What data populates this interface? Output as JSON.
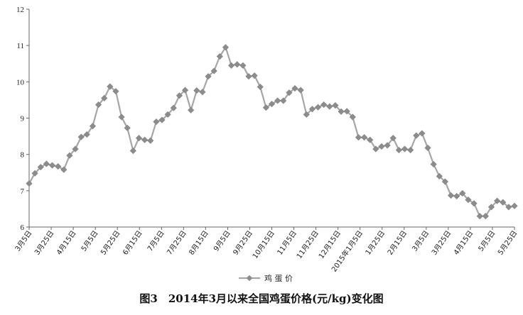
{
  "chart_data": {
    "type": "line",
    "title": "图3　2014年3月以来全国鸡蛋价格(元/kg)变化图",
    "xlabel": "",
    "ylabel": "",
    "ylim": [
      6,
      12
    ],
    "yticks": [
      "6",
      "7",
      "8",
      "9",
      "10",
      "11",
      "12"
    ],
    "grid": false,
    "legend": "bottom-center",
    "colors": {
      "line": "#a6a6a6",
      "marker": "#8c8c8c",
      "axis": "#666666"
    },
    "x_tick_labels": [
      "3月5日",
      "3月25日",
      "4月15日",
      "5月5日",
      "5月25日",
      "6月15日",
      "7月5日",
      "7月25日",
      "8月15日",
      "9月5日",
      "9月25日",
      "10月15日",
      "11月5日",
      "11月25日",
      "12月15日",
      "2015年1月5日",
      "1月25日",
      "2月15日",
      "3月5日",
      "3月25日",
      "4月15日",
      "5月5日",
      "5月25日"
    ],
    "series": [
      {
        "name": "鸡 蛋 价",
        "values": [
          7.2,
          7.48,
          7.65,
          7.74,
          7.7,
          7.67,
          7.58,
          7.97,
          8.15,
          8.48,
          8.55,
          8.78,
          9.37,
          9.55,
          9.87,
          9.74,
          9.03,
          8.73,
          8.1,
          8.45,
          8.4,
          8.38,
          8.9,
          8.95,
          9.1,
          9.28,
          9.62,
          9.77,
          9.22,
          9.76,
          9.72,
          10.15,
          10.3,
          10.7,
          10.95,
          10.45,
          10.48,
          10.45,
          10.15,
          10.17,
          9.86,
          9.29,
          9.39,
          9.48,
          9.48,
          9.7,
          9.82,
          9.77,
          9.1,
          9.25,
          9.3,
          9.37,
          9.32,
          9.35,
          9.18,
          9.19,
          9.03,
          8.47,
          8.47,
          8.4,
          8.15,
          8.22,
          8.25,
          8.45,
          8.12,
          8.15,
          8.12,
          8.52,
          8.58,
          8.18,
          7.73,
          7.4,
          7.25,
          6.87,
          6.85,
          6.93,
          6.75,
          6.65,
          6.3,
          6.3,
          6.55,
          6.72,
          6.68,
          6.55,
          6.58
        ]
      }
    ]
  }
}
